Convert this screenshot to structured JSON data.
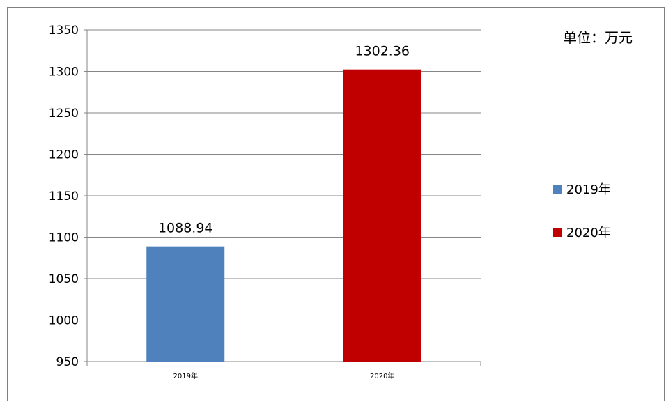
{
  "unit_label": "单位：万元",
  "colors": {
    "series_2019": "#4f81bd",
    "series_2020": "#c00000",
    "grid": "#868686",
    "text": "#000000"
  },
  "legend": [
    {
      "label": "2019年",
      "color": "#4f81bd"
    },
    {
      "label": "2020年",
      "color": "#c00000"
    }
  ],
  "chart_data": {
    "type": "bar",
    "categories": [
      "2019年",
      "2020年"
    ],
    "values": [
      1088.94,
      1302.36
    ],
    "data_labels": [
      "1088.94",
      "1302.36"
    ],
    "colors": [
      "#4f81bd",
      "#c00000"
    ],
    "ylim": [
      950,
      1350
    ],
    "yticks": [
      950,
      1000,
      1050,
      1100,
      1150,
      1200,
      1250,
      1300,
      1350
    ],
    "grid": true,
    "legend_position": "right",
    "title": "",
    "xlabel": "",
    "ylabel": ""
  }
}
